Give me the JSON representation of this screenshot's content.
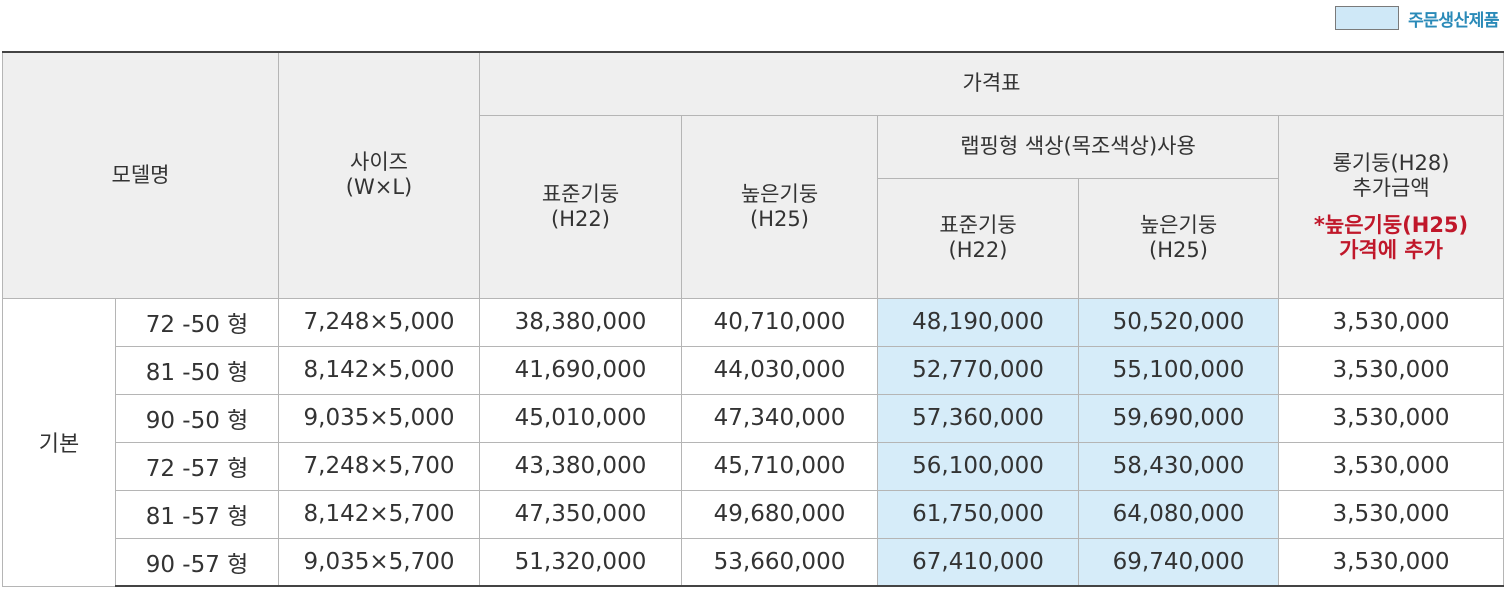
{
  "legend": {
    "label": "주문생산제품"
  },
  "header": {
    "model": "모델명",
    "size_line1": "사이즈",
    "size_line2": "(W×L)",
    "price_table": "가격표",
    "standard_pillar": "표준기둥",
    "standard_pillar_h": "(H22)",
    "high_pillar": "높은기둥",
    "high_pillar_h": "(H25)",
    "wrapping": "랩핑형 색상(목조색상)사용",
    "wrap_standard": "표준기둥",
    "wrap_standard_h": "(H22)",
    "wrap_high": "높은기둥",
    "wrap_high_h": "(H25)",
    "long_line1": "롱기둥(H28)",
    "long_line2": "추가금액",
    "long_note1": "*높은기둥(H25)",
    "long_note2": "가격에 추가"
  },
  "group": "기본",
  "rows": [
    {
      "model": "72 -50 형",
      "size": "7,248×5,000",
      "std": "38,380,000",
      "high": "40,710,000",
      "wrap_std": "48,190,000",
      "wrap_high": "50,520,000",
      "long": "3,530,000"
    },
    {
      "model": "81 -50 형",
      "size": "8,142×5,000",
      "std": "41,690,000",
      "high": "44,030,000",
      "wrap_std": "52,770,000",
      "wrap_high": "55,100,000",
      "long": "3,530,000"
    },
    {
      "model": "90 -50 형",
      "size": "9,035×5,000",
      "std": "45,010,000",
      "high": "47,340,000",
      "wrap_std": "57,360,000",
      "wrap_high": "59,690,000",
      "long": "3,530,000"
    },
    {
      "model": "72 -57 형",
      "size": "7,248×5,700",
      "std": "43,380,000",
      "high": "45,710,000",
      "wrap_std": "56,100,000",
      "wrap_high": "58,430,000",
      "long": "3,530,000"
    },
    {
      "model": "81 -57 형",
      "size": "8,142×5,700",
      "std": "47,350,000",
      "high": "49,680,000",
      "wrap_std": "61,750,000",
      "wrap_high": "64,080,000",
      "long": "3,530,000"
    },
    {
      "model": "90 -57 형",
      "size": "9,035×5,700",
      "std": "51,320,000",
      "high": "53,660,000",
      "wrap_std": "67,410,000",
      "wrap_high": "69,740,000",
      "long": "3,530,000"
    }
  ],
  "colors": {
    "highlight": "#d6ecf9",
    "legend_text": "#2a8ab8",
    "note": "#c0172a",
    "header_bg": "#efefef"
  }
}
